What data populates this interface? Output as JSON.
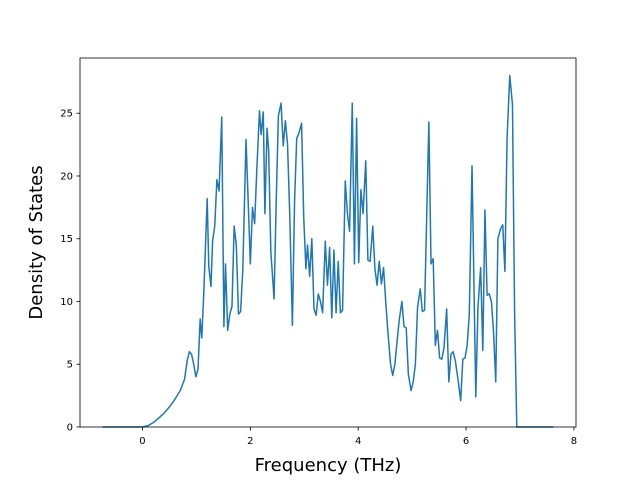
{
  "chart_data": {
    "type": "line",
    "xlabel": "Frequency (THz)",
    "ylabel": "Density of States",
    "xlim": [
      -1.158,
      8.038
    ],
    "ylim": [
      0,
      29.4
    ],
    "xticks": [
      0,
      2,
      4,
      6,
      8
    ],
    "yticks": [
      0,
      5,
      10,
      15,
      20,
      25
    ],
    "grid": false,
    "x": [
      -0.74,
      0,
      0.1,
      0.2,
      0.3,
      0.4,
      0.5,
      0.6,
      0.7,
      0.78,
      0.83,
      0.87,
      0.91,
      0.95,
      0.99,
      1.03,
      1.07,
      1.1,
      1.14,
      1.2,
      1.23,
      1.27,
      1.3,
      1.34,
      1.38,
      1.42,
      1.47,
      1.51,
      1.54,
      1.58,
      1.62,
      1.66,
      1.7,
      1.74,
      1.78,
      1.82,
      1.86,
      1.92,
      1.96,
      2.0,
      2.04,
      2.08,
      2.12,
      2.17,
      2.2,
      2.24,
      2.27,
      2.31,
      2.34,
      2.38,
      2.44,
      2.48,
      2.52,
      2.57,
      2.61,
      2.65,
      2.69,
      2.73,
      2.78,
      2.82,
      2.86,
      2.9,
      2.95,
      2.99,
      3.03,
      3.06,
      3.1,
      3.14,
      3.18,
      3.22,
      3.26,
      3.3,
      3.34,
      3.39,
      3.43,
      3.47,
      3.51,
      3.55,
      3.59,
      3.63,
      3.67,
      3.71,
      3.76,
      3.8,
      3.84,
      3.89,
      3.93,
      3.97,
      4.01,
      4.05,
      4.09,
      4.14,
      4.18,
      4.22,
      4.27,
      4.31,
      4.35,
      4.39,
      4.43,
      4.47,
      4.51,
      4.55,
      4.6,
      4.64,
      4.68,
      4.72,
      4.76,
      4.81,
      4.85,
      4.89,
      4.93,
      4.98,
      5.02,
      5.06,
      5.1,
      5.15,
      5.19,
      5.23,
      5.31,
      5.35,
      5.39,
      5.43,
      5.47,
      5.51,
      5.55,
      5.59,
      5.64,
      5.68,
      5.72,
      5.76,
      5.8,
      5.85,
      5.9,
      5.94,
      5.98,
      6.02,
      6.06,
      6.11,
      6.18,
      6.22,
      6.27,
      6.31,
      6.35,
      6.39,
      6.43,
      6.47,
      6.51,
      6.55,
      6.59,
      6.64,
      6.68,
      6.72,
      6.76,
      6.81,
      6.86,
      6.9,
      6.94,
      7.62
    ],
    "series": [
      {
        "name": "DOS",
        "color": "#1f77b4",
        "values": [
          0,
          0,
          0.1,
          0.35,
          0.7,
          1.1,
          1.6,
          2.2,
          2.9,
          3.8,
          5.3,
          6.0,
          5.8,
          5.0,
          4.0,
          4.6,
          8.6,
          7.1,
          11.0,
          18.2,
          12.8,
          11.2,
          14.8,
          16.0,
          19.7,
          18.8,
          24.7,
          8.0,
          13.0,
          7.7,
          9.0,
          9.6,
          16.0,
          14.5,
          9.0,
          9.2,
          12.5,
          22.9,
          18.0,
          13.0,
          17.5,
          16.2,
          20.5,
          25.2,
          23.3,
          25.1,
          17.0,
          23.8,
          22.0,
          14.0,
          10.2,
          18.0,
          24.8,
          25.8,
          22.4,
          24.4,
          22.5,
          17.0,
          8.1,
          18.0,
          23.0,
          23.4,
          24.2,
          16.7,
          12.6,
          14.5,
          12.0,
          15.0,
          9.4,
          8.9,
          10.6,
          10.0,
          9.1,
          14.8,
          11.3,
          14.3,
          8.7,
          14.1,
          9.1,
          13.2,
          9.1,
          9.3,
          19.6,
          17.0,
          15.6,
          25.8,
          13.0,
          24.6,
          13.1,
          18.9,
          17.0,
          21.2,
          13.3,
          13.2,
          16.0,
          12.6,
          11.3,
          13.2,
          11.4,
          12.7,
          10.0,
          7.6,
          5.0,
          4.1,
          5.0,
          6.8,
          8.5,
          10.0,
          8.0,
          7.9,
          4.2,
          2.9,
          3.6,
          5.0,
          9.5,
          11.0,
          9.2,
          9.3,
          24.3,
          13.0,
          13.4,
          6.5,
          7.7,
          5.5,
          5.4,
          6.3,
          9.4,
          3.6,
          5.8,
          6.0,
          5.3,
          3.8,
          2.1,
          5.4,
          5.5,
          6.5,
          9.0,
          20.8,
          2.4,
          9.5,
          12.7,
          6.1,
          17.3,
          10.5,
          10.6,
          10.0,
          7.5,
          3.6,
          15.0,
          15.8,
          16.1,
          12.4,
          23.0,
          28.0,
          25.7,
          9.0,
          0,
          0
        ]
      }
    ]
  }
}
